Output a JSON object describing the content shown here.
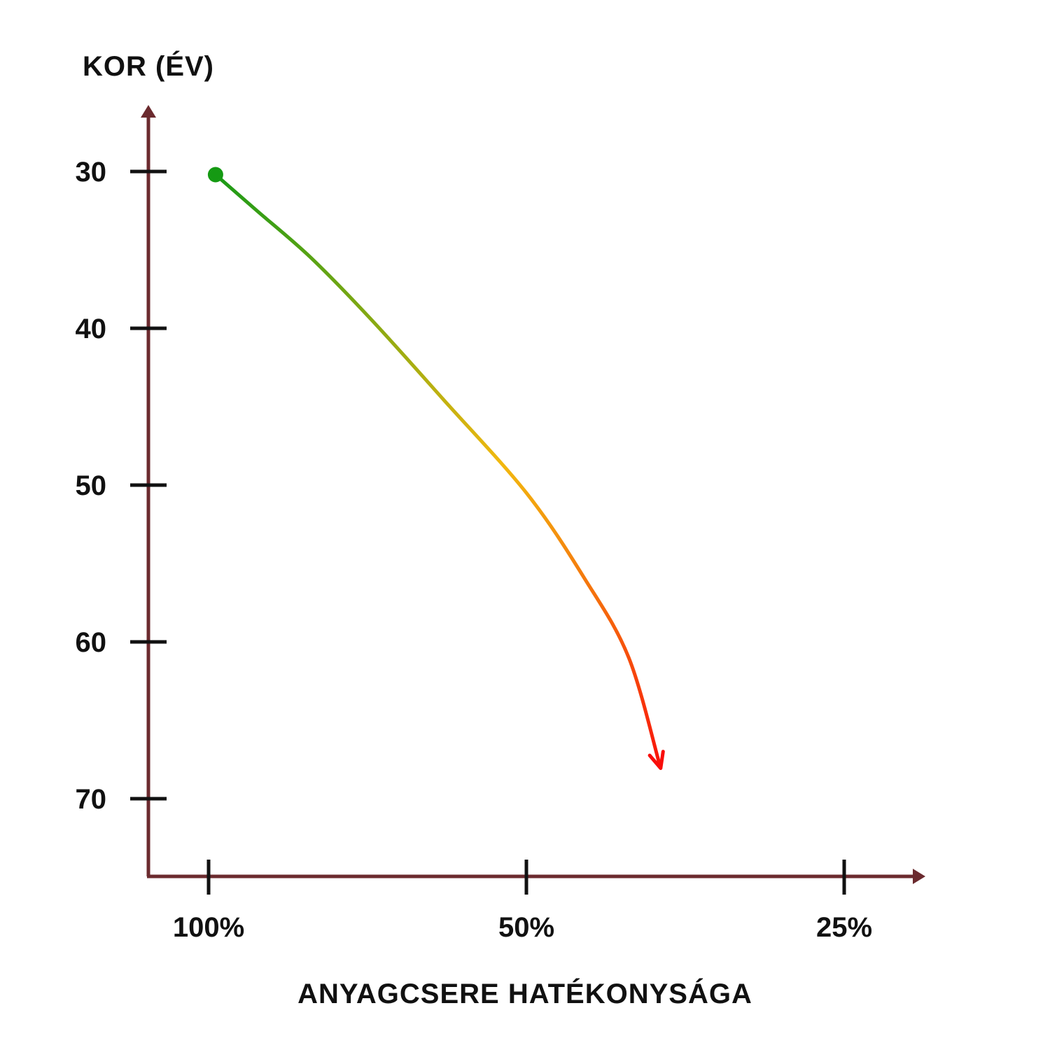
{
  "chart_data": {
    "type": "line",
    "title": "",
    "ylabel": "KOR (ÉV)",
    "xlabel": "ANYAGCSERE HATÉKONYSÁGA",
    "y_axis": {
      "ticks": [
        30,
        40,
        50,
        60,
        70
      ],
      "tick_labels": [
        "30",
        "40",
        "50",
        "60",
        "70"
      ],
      "direction": "increasing-downward",
      "range": [
        26,
        75
      ]
    },
    "x_axis": {
      "ticks": [
        100,
        50,
        25
      ],
      "tick_labels": [
        "100%",
        "50%",
        "25%"
      ],
      "direction": "decreasing-rightward"
    },
    "grid": false,
    "legend": "none",
    "series": [
      {
        "points": [
          {
            "efficiency": 98.5,
            "age": 30.2
          },
          {
            "efficiency": 90,
            "age": 32.5
          },
          {
            "efficiency": 80,
            "age": 35.5
          },
          {
            "efficiency": 70,
            "age": 39.5
          },
          {
            "efficiency": 60,
            "age": 44.5
          },
          {
            "efficiency": 50,
            "age": 50.5
          },
          {
            "efficiency": 44,
            "age": 56
          },
          {
            "efficiency": 40,
            "age": 61
          },
          {
            "efficiency": 37.4,
            "age": 67.8
          }
        ],
        "start_marker_color": "#159a13",
        "gradient_colors": [
          "#1a9a16",
          "#f2b80f",
          "#f90d0a"
        ],
        "end": "arrow"
      }
    ],
    "colors": {
      "axis": "#6b2a2e",
      "tick": "#111111"
    }
  }
}
